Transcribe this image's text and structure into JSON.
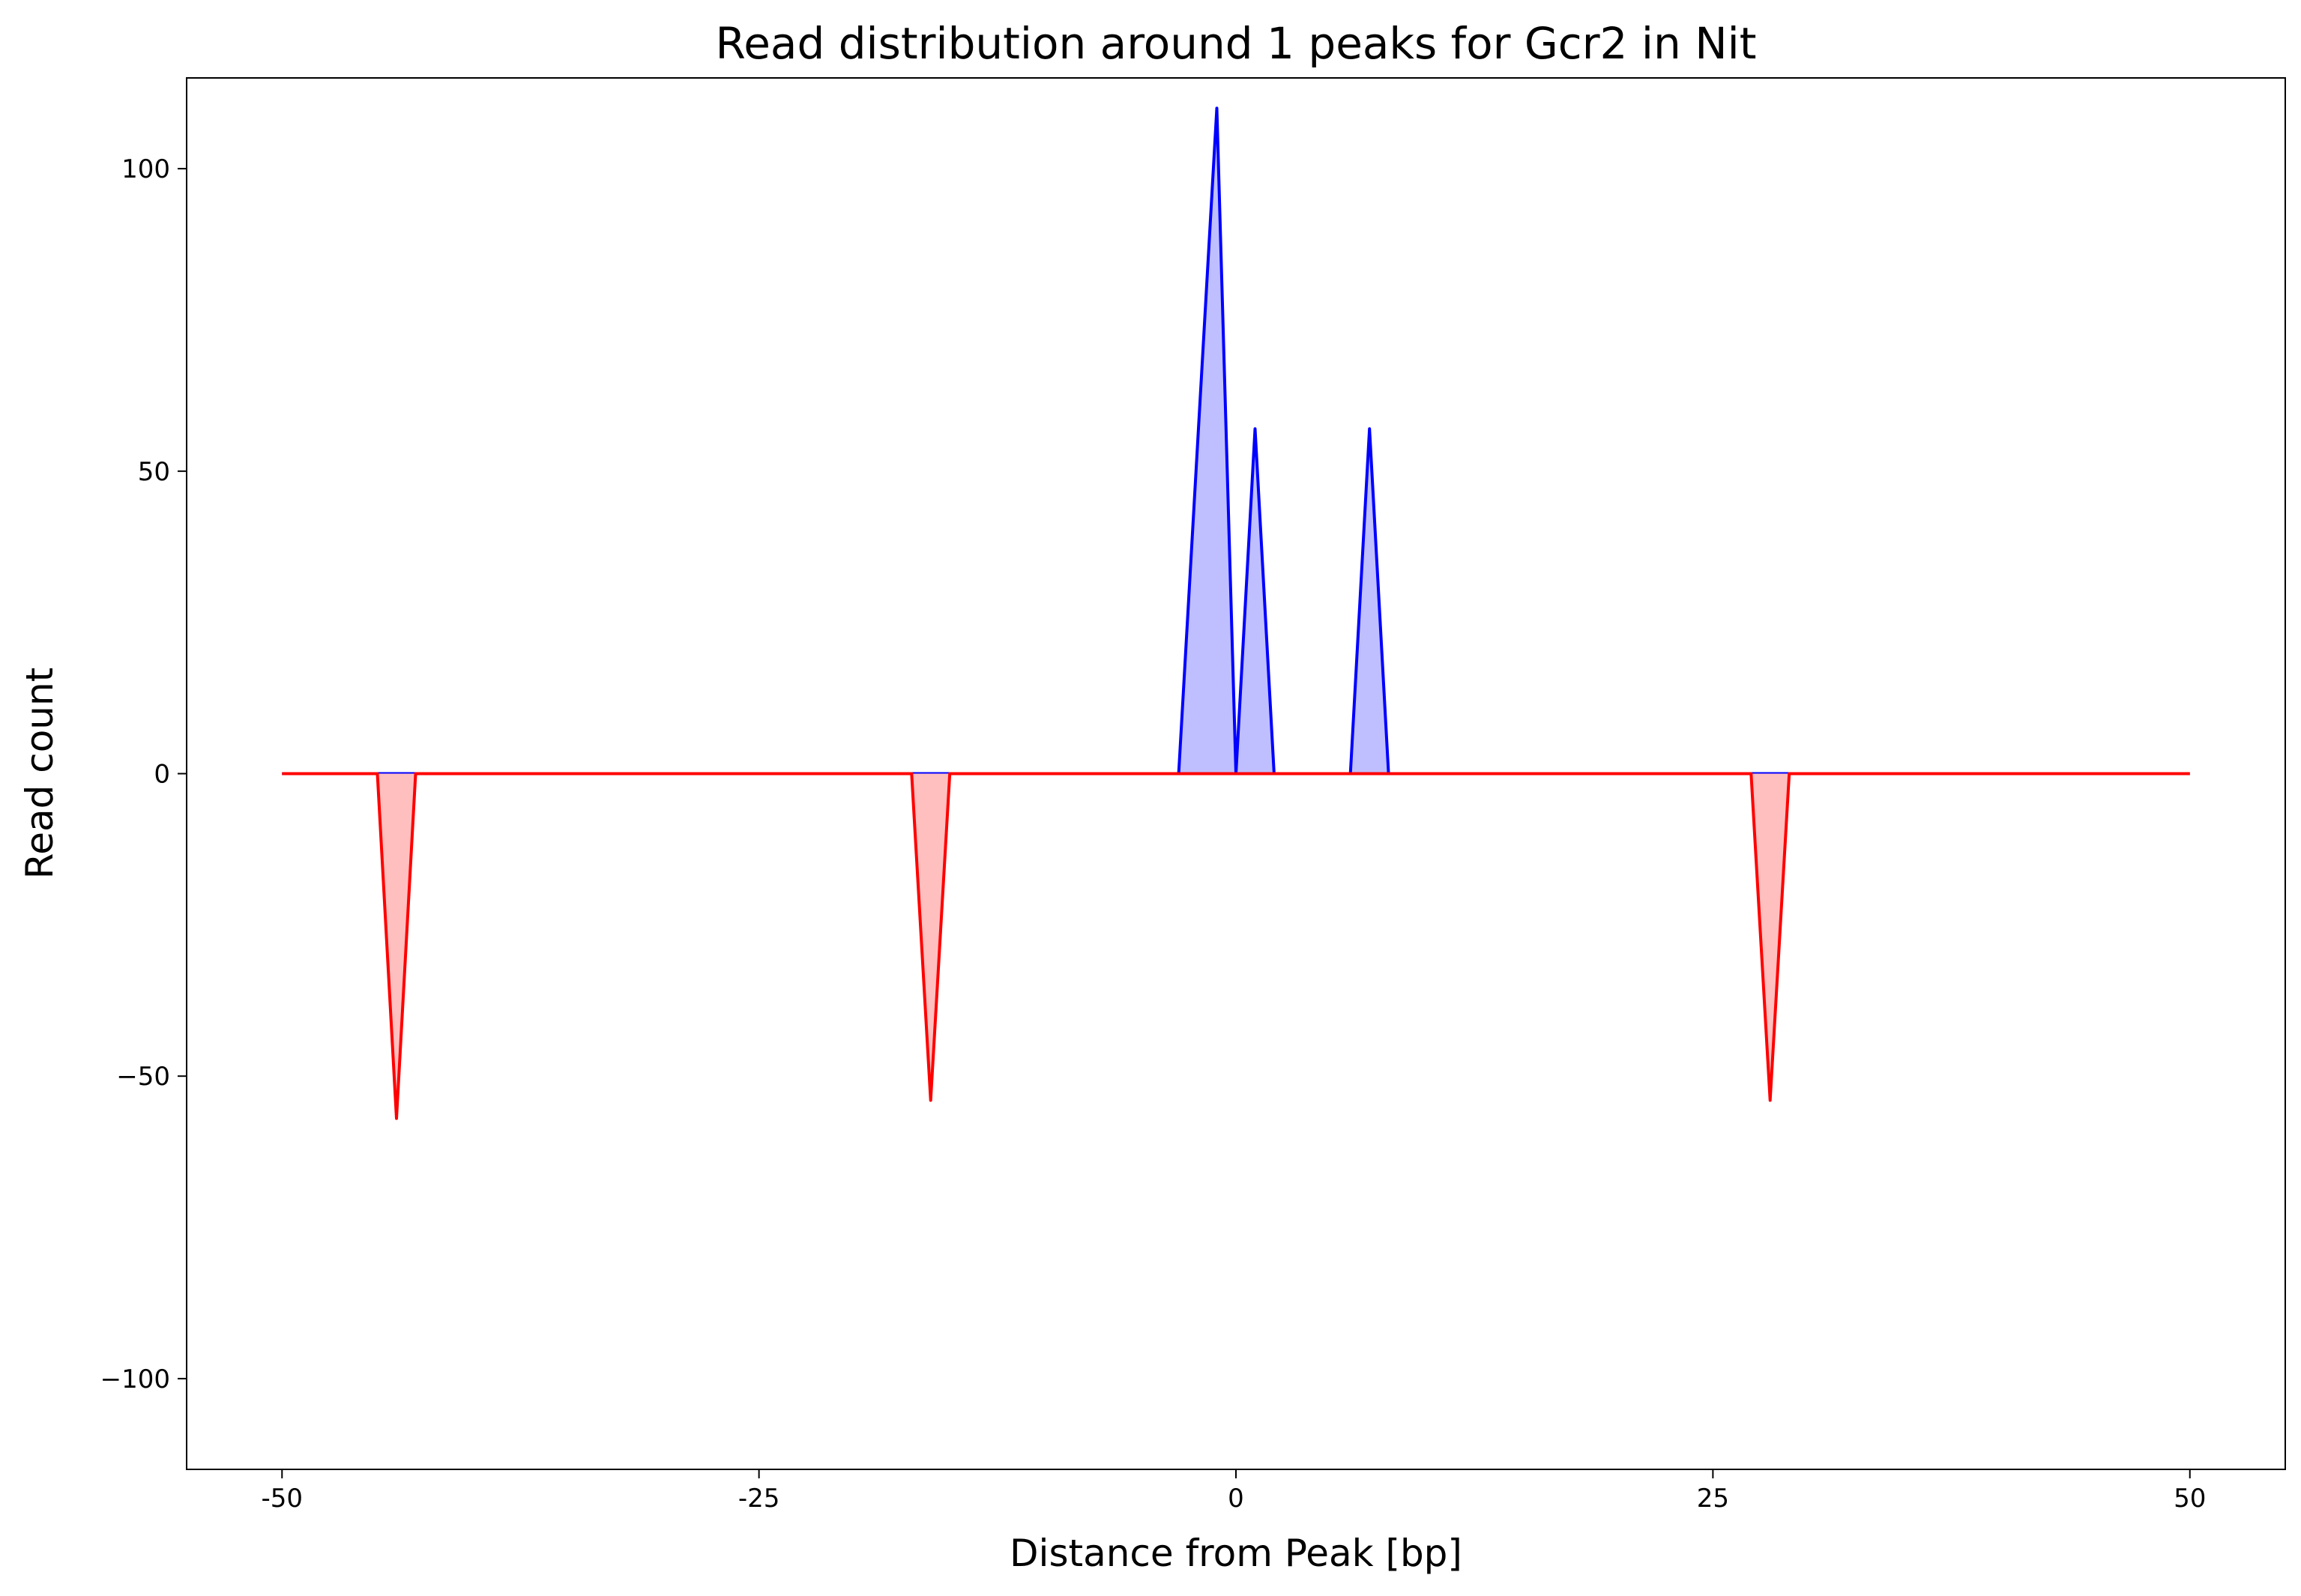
{
  "chart_data": {
    "type": "area",
    "title": "Read distribution around 1 peaks for Gcr2 in Nit",
    "xlabel": "Distance from Peak [bp]",
    "ylabel": "Read count",
    "xlim": [
      -55,
      55
    ],
    "ylim": [
      -115,
      115
    ],
    "x_ticks": [
      -50,
      -25,
      0,
      25,
      50
    ],
    "x_tick_labels": [
      "-50",
      "-25",
      "0",
      "25",
      "50"
    ],
    "y_ticks": [
      100,
      50,
      0,
      -50,
      -100
    ],
    "y_tick_labels": [
      "100",
      "50",
      "0",
      "−50",
      "−100"
    ],
    "grid": false,
    "legend": "none",
    "series": [
      {
        "strand": "forward",
        "color": "#0000ff",
        "fill_color": "#bfbfff",
        "x": [
          -50,
          -3,
          -1,
          0,
          1,
          2,
          6,
          7,
          8,
          50
        ],
        "y": [
          0,
          0,
          110,
          0,
          57,
          0,
          0,
          57,
          0,
          0
        ]
      },
      {
        "strand": "reverse",
        "color": "#ff0000",
        "fill_color": "#ffbfbf",
        "x": [
          -50,
          -45,
          -44,
          -43,
          -17,
          -16,
          -15,
          27,
          28,
          29,
          50
        ],
        "y": [
          0,
          0,
          -57,
          0,
          0,
          -54,
          0,
          0,
          -54,
          0,
          0
        ]
      }
    ]
  }
}
